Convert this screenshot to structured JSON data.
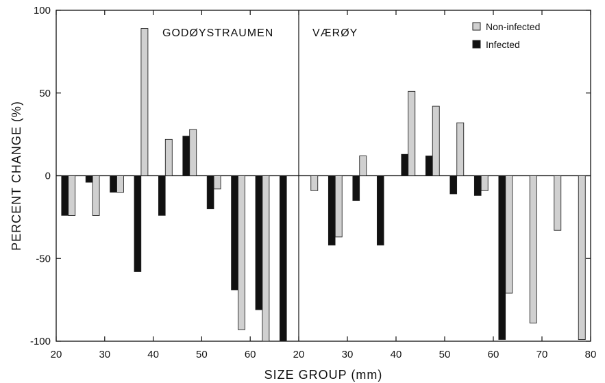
{
  "chart_data": {
    "type": "bar",
    "xlabel": "SIZE GROUP (mm)",
    "ylabel": "PERCENT CHANGE (%)",
    "ylim": [
      -100,
      100
    ],
    "yticks": [
      100,
      50,
      0,
      -50,
      -100
    ],
    "grid": false,
    "legend": {
      "placement": "top-right",
      "entries": [
        {
          "name": "Non-infected",
          "color": "#d0d0d0"
        },
        {
          "name": "Infected",
          "color": "#111111"
        }
      ]
    },
    "panels": [
      {
        "title": "GODØYSTRAUMEN",
        "xlim": [
          20,
          70
        ],
        "xticks": [
          20,
          30,
          40,
          50,
          60
        ],
        "x": [
          22.5,
          27.5,
          32.5,
          37.5,
          42.5,
          47.5,
          52.5,
          57.5,
          62.5,
          67.5
        ],
        "series": [
          {
            "name": "Infected",
            "values": [
              -24,
              -4,
              -10,
              -58,
              -24,
              24,
              -20,
              -69,
              -81,
              -100
            ]
          },
          {
            "name": "Non-infected",
            "values": [
              -24,
              -24,
              -10,
              89,
              22,
              28,
              -8,
              -93,
              -100,
              null
            ]
          }
        ]
      },
      {
        "title": "VÆRØY",
        "xlim": [
          20,
          80
        ],
        "xticks": [
          20,
          30,
          40,
          50,
          60,
          70,
          80
        ],
        "x": [
          22.5,
          27.5,
          32.5,
          37.5,
          42.5,
          47.5,
          52.5,
          57.5,
          62.5,
          67.5,
          72.5,
          77.5
        ],
        "series": [
          {
            "name": "Infected",
            "values": [
              null,
              -42,
              -15,
              -42,
              13,
              12,
              -11,
              -12,
              -99,
              null,
              null,
              null
            ]
          },
          {
            "name": "Non-infected",
            "values": [
              -9,
              -37,
              12,
              null,
              51,
              42,
              32,
              -9,
              -71,
              -89,
              -33,
              -99
            ]
          }
        ]
      }
    ]
  }
}
